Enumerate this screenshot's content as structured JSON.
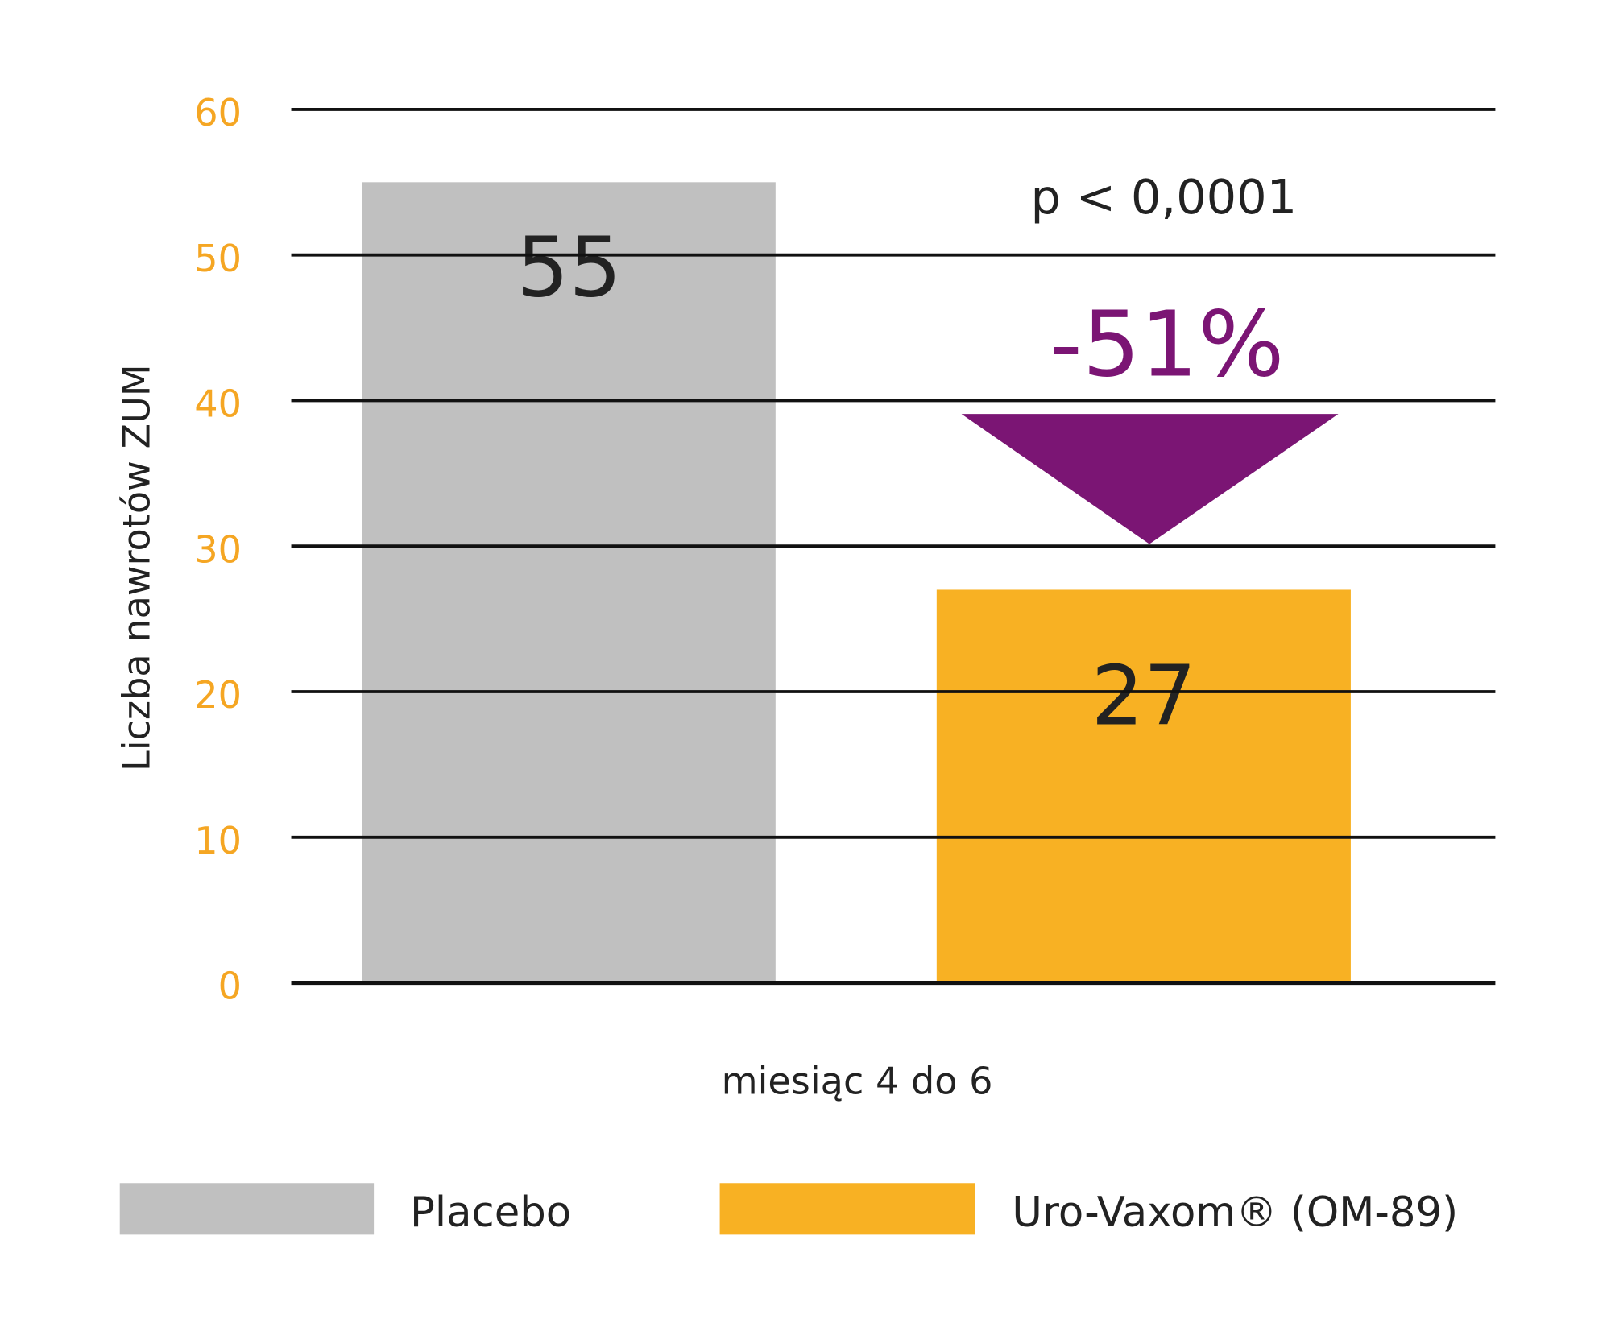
{
  "chart_data": {
    "type": "bar",
    "x_label": "miesiąc 4 do 6",
    "y_label": "Liczba nawrotów ZUM",
    "categories": [
      "miesiąc 4 do 6"
    ],
    "series": [
      {
        "name": "Placebo",
        "color": "#c0c0c0",
        "values": [
          55
        ]
      },
      {
        "name": "Uro-Vaxom® (OM-89)",
        "color": "#f8b123",
        "values": [
          27
        ]
      }
    ],
    "ylim": [
      0,
      60
    ],
    "yticks": [
      0,
      10,
      20,
      30,
      40,
      50,
      60
    ],
    "tick_color": "#f5a623",
    "grid": true,
    "annotations": [
      "p < 0,0001",
      "-51%"
    ],
    "annotation_color": "#7b1574"
  }
}
